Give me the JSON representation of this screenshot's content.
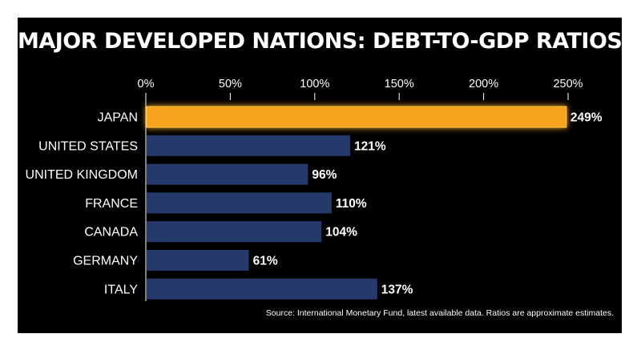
{
  "colors": {
    "background": "#000000",
    "highlight_bar": "#f7a21b",
    "bar": "#253a6b",
    "text": "#ffffff"
  },
  "source_note": "Source: International Monetary Fund, latest available data. Ratios are approximate estimates.",
  "chart_data": {
    "type": "bar",
    "orientation": "horizontal",
    "title": "MAJOR DEVELOPED NATIONS: DEBT-TO-GDP RATIOS",
    "categories": [
      "JAPAN",
      "UNITED STATES",
      "UNITED KINGDOM",
      "FRANCE",
      "CANADA",
      "GERMANY",
      "ITALY"
    ],
    "values": [
      249,
      121,
      96,
      110,
      104,
      61,
      137
    ],
    "value_labels": [
      "249%",
      "121%",
      "96%",
      "110%",
      "104%",
      "61%",
      "137%"
    ],
    "highlight": "JAPAN",
    "xlim": [
      0,
      250
    ],
    "x_ticks": [
      0,
      50,
      100,
      150,
      200,
      250
    ],
    "x_tick_labels": [
      "0%",
      "50%",
      "100%",
      "150%",
      "200%",
      "250%"
    ],
    "x_axis_position": "top",
    "grid": false
  }
}
